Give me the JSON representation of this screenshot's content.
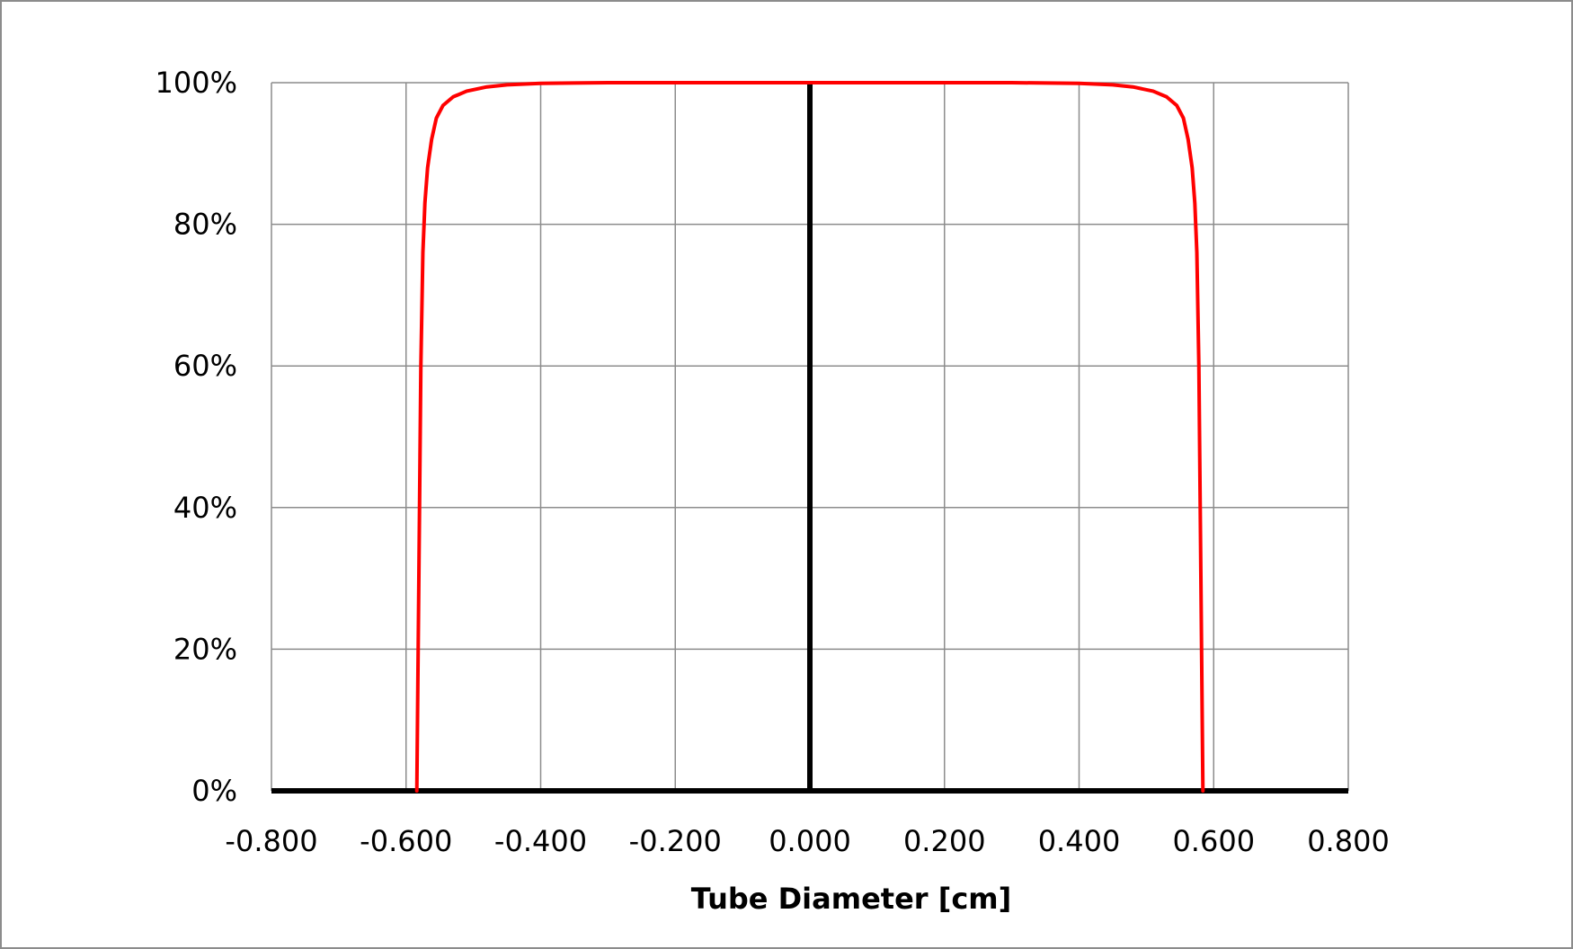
{
  "chart_data": {
    "type": "line",
    "title": "",
    "xlabel": "Tube Diameter [cm]",
    "ylabel": "",
    "xlim": [
      -0.8,
      0.8
    ],
    "ylim": [
      0,
      1
    ],
    "x_ticks": [
      -0.8,
      -0.6,
      -0.4,
      -0.2,
      0.0,
      0.2,
      0.4,
      0.6,
      0.8
    ],
    "x_tick_labels": [
      "-0.800",
      "-0.600",
      "-0.400",
      "-0.200",
      "0.000",
      "0.200",
      "0.400",
      "0.600",
      "0.800"
    ],
    "y_ticks": [
      0,
      0.2,
      0.4,
      0.6,
      0.8,
      1.0
    ],
    "y_tick_labels": [
      "0%",
      "20%",
      "40%",
      "60%",
      "80%",
      "100%"
    ],
    "grid": true,
    "legend": "none",
    "series": [
      {
        "color": "#ff0000",
        "x": [
          -0.584,
          -0.583,
          -0.582,
          -0.58,
          -0.578,
          -0.575,
          -0.572,
          -0.568,
          -0.562,
          -0.555,
          -0.545,
          -0.53,
          -0.51,
          -0.48,
          -0.45,
          -0.4,
          -0.3,
          -0.2,
          -0.1,
          0.0,
          0.1,
          0.2,
          0.3,
          0.4,
          0.45,
          0.48,
          0.51,
          0.53,
          0.545,
          0.555,
          0.562,
          0.568,
          0.572,
          0.575,
          0.578,
          0.58,
          0.582,
          0.583,
          0.584
        ],
        "y": [
          0.0,
          0.1,
          0.2,
          0.4,
          0.6,
          0.76,
          0.83,
          0.88,
          0.92,
          0.95,
          0.968,
          0.98,
          0.988,
          0.994,
          0.997,
          0.999,
          1.0,
          1.0,
          1.0,
          1.0,
          1.0,
          1.0,
          1.0,
          0.999,
          0.997,
          0.994,
          0.988,
          0.98,
          0.968,
          0.95,
          0.92,
          0.88,
          0.83,
          0.76,
          0.6,
          0.4,
          0.2,
          0.1,
          0.0
        ]
      }
    ],
    "axis_line_color": "#000000",
    "grid_color": "#8c8c8c"
  }
}
